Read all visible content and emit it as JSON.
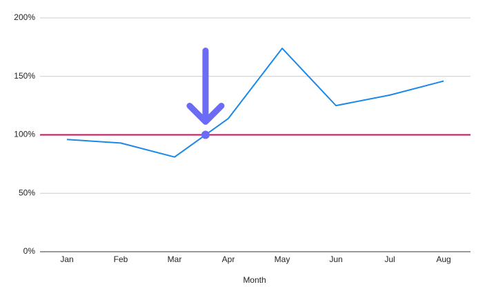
{
  "chart_data": {
    "type": "line",
    "x_label": "Month",
    "categories": [
      "Jan",
      "Feb",
      "Mar",
      "Apr",
      "May",
      "Jun",
      "Jul",
      "Aug"
    ],
    "values": [
      96,
      93,
      81,
      114,
      174,
      125,
      134,
      146
    ],
    "color": "#1a88e8",
    "ylim": [
      0,
      200
    ],
    "yticks": [
      {
        "value": 0,
        "label": "0%"
      },
      {
        "value": 50,
        "label": "50%"
      },
      {
        "value": 100,
        "label": "100%"
      },
      {
        "value": 150,
        "label": "150%"
      },
      {
        "value": 200,
        "label": "200%"
      }
    ],
    "grid": true,
    "reference_line": {
      "value": 100,
      "color": "#cc0e5f"
    }
  }
}
